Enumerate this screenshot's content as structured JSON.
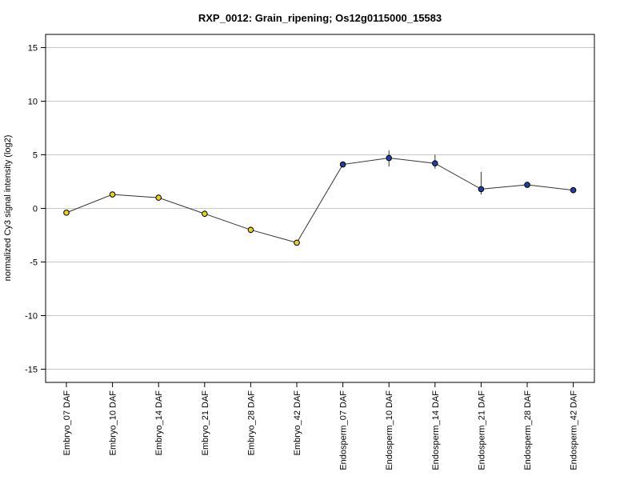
{
  "chart_data": {
    "type": "line",
    "title": "RXP_0012: Grain_ripening; Os12g0115000_15583",
    "ylabel": "normalized Cy3 signal intensity (log2)",
    "xlabel": "",
    "ylim": [
      -16,
      16.3
    ],
    "yticks": [
      15,
      10,
      5,
      0,
      -5,
      -10,
      -15
    ],
    "grid": true,
    "categories": [
      "Embryo_07 DAF",
      "Embryo_10 DAF",
      "Embryo_14 DAF",
      "Embryo_21 DAF",
      "Embryo_28 DAF",
      "Embryo_42 DAF",
      "Endosperm_07 DAF",
      "Endosperm_10 DAF",
      "Endosperm_14 DAF",
      "Endosperm_21 DAF",
      "Endosperm_28 DAF",
      "Endosperm_42 DAF"
    ],
    "values": [
      -0.4,
      1.3,
      1.0,
      -0.5,
      -2.0,
      -3.2,
      4.1,
      4.7,
      4.2,
      1.8,
      2.2,
      1.7
    ],
    "error_low": [
      -0.4,
      1.3,
      1.0,
      -0.8,
      -2.3,
      -3.2,
      3.9,
      3.9,
      3.7,
      1.3,
      2.2,
      1.7
    ],
    "error_high": [
      -0.4,
      1.3,
      1.0,
      -0.2,
      -1.7,
      -3.2,
      4.3,
      5.4,
      5.0,
      3.4,
      2.2,
      1.7
    ],
    "point_colors": [
      "#e6d21c",
      "#e6d21c",
      "#e6d21c",
      "#e6d21c",
      "#e6d21c",
      "#e6d21c",
      "#1f3fa6",
      "#1f3fa6",
      "#1f3fa6",
      "#1f3fa6",
      "#1f3fa6",
      "#1f3fa6"
    ],
    "line_color": "#333333"
  }
}
